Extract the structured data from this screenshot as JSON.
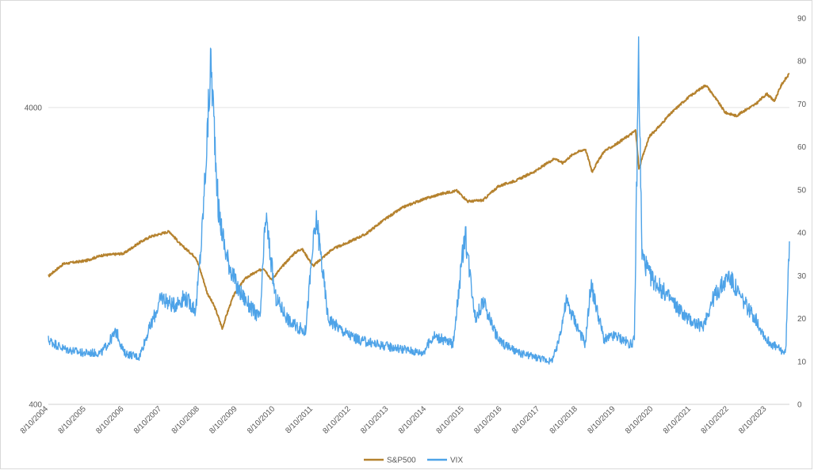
{
  "chart_data": {
    "type": "line",
    "title": "",
    "xlabel": "",
    "y_left": {
      "ticks": [
        "400",
        "4000"
      ],
      "scale": "log",
      "range": [
        400,
        8000
      ]
    },
    "y_right": {
      "ticks": [
        "0",
        "10",
        "20",
        "30",
        "40",
        "50",
        "60",
        "70",
        "80",
        "90"
      ],
      "range": [
        0,
        90
      ]
    },
    "x_ticks": [
      "8/10/2004",
      "8/10/2005",
      "8/10/2006",
      "8/10/2007",
      "8/10/2008",
      "8/10/2009",
      "8/10/2010",
      "8/10/2011",
      "8/10/2012",
      "8/10/2013",
      "8/10/2014",
      "8/10/2015",
      "8/10/2016",
      "8/10/2017",
      "8/10/2018",
      "8/10/2019",
      "8/10/2020",
      "8/10/2021",
      "8/10/2022",
      "8/10/2023"
    ],
    "x_range": [
      2004.6,
      2024.2
    ],
    "grid": true,
    "legend_position": "bottom",
    "series": [
      {
        "name": "S&P500",
        "axis": "left",
        "color": "#b5822e",
        "x": [
          2004.6,
          2005.0,
          2005.6,
          2006.0,
          2006.6,
          2007.0,
          2007.3,
          2007.8,
          2008.1,
          2008.5,
          2008.8,
          2009.0,
          2009.2,
          2009.5,
          2009.8,
          2010.0,
          2010.3,
          2010.5,
          2010.8,
          2011.1,
          2011.3,
          2011.6,
          2011.8,
          2012.1,
          2012.5,
          2013.0,
          2013.5,
          2014.0,
          2014.5,
          2015.0,
          2015.4,
          2015.7,
          2016.1,
          2016.5,
          2017.0,
          2017.5,
          2018.0,
          2018.2,
          2018.5,
          2018.8,
          2018.98,
          2019.3,
          2019.6,
          2020.0,
          2020.13,
          2020.22,
          2020.5,
          2020.8,
          2021.0,
          2021.5,
          2021.99,
          2022.3,
          2022.5,
          2022.8,
          2023.0,
          2023.3,
          2023.6,
          2023.8,
          2024.0,
          2024.2
        ],
        "values": [
          1080,
          1190,
          1220,
          1270,
          1290,
          1400,
          1470,
          1530,
          1380,
          1250,
          950,
          850,
          720,
          930,
          1060,
          1100,
          1150,
          1050,
          1170,
          1290,
          1340,
          1170,
          1230,
          1330,
          1400,
          1500,
          1680,
          1850,
          1960,
          2050,
          2100,
          1930,
          1950,
          2170,
          2280,
          2450,
          2700,
          2600,
          2800,
          2900,
          2430,
          2850,
          3000,
          3250,
          3350,
          2480,
          3200,
          3500,
          3750,
          4300,
          4766,
          4200,
          3850,
          3750,
          3900,
          4100,
          4450,
          4200,
          4800,
          5200
        ]
      },
      {
        "name": "VIX",
        "axis": "right",
        "color": "#4ea3e8",
        "x": [
          2004.6,
          2005.0,
          2005.5,
          2006.0,
          2006.4,
          2006.6,
          2007.0,
          2007.2,
          2007.6,
          2007.9,
          2008.2,
          2008.5,
          2008.65,
          2008.8,
          2008.9,
          2009.1,
          2009.3,
          2009.6,
          2010.0,
          2010.2,
          2010.35,
          2010.6,
          2011.0,
          2011.4,
          2011.6,
          2011.7,
          2012.0,
          2012.4,
          2012.8,
          2013.3,
          2013.9,
          2014.5,
          2014.8,
          2015.3,
          2015.62,
          2015.9,
          2016.1,
          2016.5,
          2017.0,
          2017.5,
          2017.9,
          2018.05,
          2018.3,
          2018.8,
          2018.95,
          2019.3,
          2019.6,
          2020.0,
          2020.1,
          2020.21,
          2020.3,
          2020.5,
          2020.8,
          2021.1,
          2021.5,
          2021.9,
          2022.2,
          2022.6,
          2022.9,
          2023.3,
          2023.6,
          2023.9,
          2024.1,
          2024.2
        ],
        "values": [
          15,
          13,
          12,
          12,
          17,
          12,
          11,
          16,
          25,
          23,
          25,
          22,
          38,
          62,
          80,
          45,
          35,
          27,
          22,
          20,
          44,
          25,
          19,
          17,
          37,
          43,
          20,
          17,
          15,
          14,
          13,
          12,
          16,
          14,
          40,
          20,
          24,
          15,
          12,
          11,
          10,
          13,
          24,
          14,
          28,
          15,
          16,
          14,
          15,
          82,
          35,
          30,
          27,
          24,
          20,
          18,
          25,
          30,
          25,
          20,
          15,
          13,
          12,
          38
        ]
      }
    ]
  }
}
